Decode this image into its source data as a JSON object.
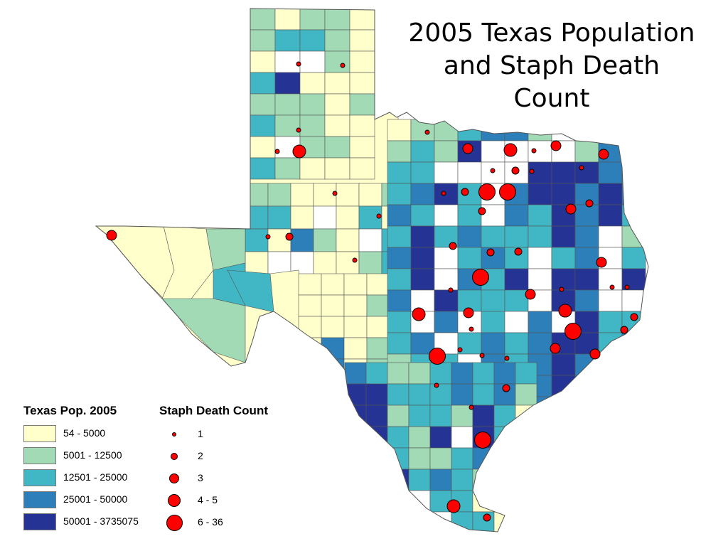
{
  "title_lines": [
    "2005 Texas Population",
    "and Staph Death",
    "Count"
  ],
  "colors": {
    "pop_1": "#ffffcc",
    "pop_2": "#a1dab4",
    "pop_3": "#41b6c4",
    "pop_4": "#2c7fb8",
    "pop_5": "#253494",
    "no_data_fill": "#ffffff",
    "dot": "#ff0000",
    "border": "#555555"
  },
  "legend": {
    "population": {
      "heading": "Texas Pop. 2005",
      "items": [
        {
          "label": "54 - 5000",
          "class": "pop_1"
        },
        {
          "label": "5001 - 12500",
          "class": "pop_2"
        },
        {
          "label": "12501 - 25000",
          "class": "pop_3"
        },
        {
          "label": "25001 - 50000",
          "class": "pop_4"
        },
        {
          "label": "50001 - 3735075",
          "class": "pop_5"
        }
      ]
    },
    "deaths": {
      "heading": "Staph Death Count",
      "items": [
        {
          "label": "1",
          "size": 1
        },
        {
          "label": "2",
          "size": 2
        },
        {
          "label": "3",
          "size": 3
        },
        {
          "label": "4 - 5",
          "size": 4
        },
        {
          "label": "6 - 36",
          "size": 5
        }
      ]
    }
  }
}
